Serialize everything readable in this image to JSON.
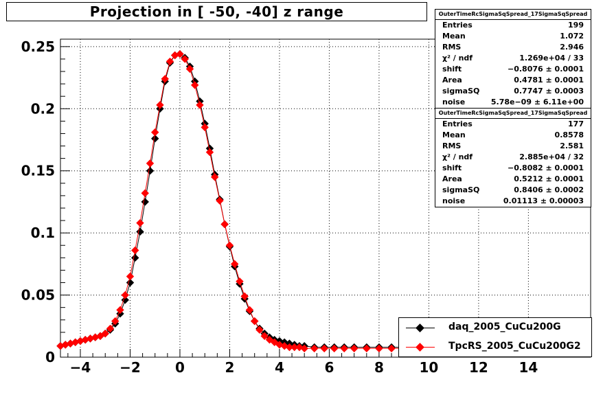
{
  "chart_data": {
    "type": "scatter",
    "title": "Projection in [ -50, -40] z range",
    "xlim": [
      -4.8,
      16.5
    ],
    "ylim": [
      0,
      0.256
    ],
    "x_ticks": [
      "−4",
      "−2",
      "0",
      "2",
      "4",
      "6",
      "8",
      "10",
      "12",
      "14"
    ],
    "y_ticks": [
      "0",
      "0.05",
      "0.1",
      "0.15",
      "0.2",
      "0.25"
    ],
    "grid": true,
    "legend_position": "bottom-right",
    "series": [
      {
        "name": "daq_2005_CuCu200G",
        "color": "#000000",
        "x": [
          -4.8,
          -4.6,
          -4.4,
          -4.2,
          -4.0,
          -3.8,
          -3.6,
          -3.4,
          -3.2,
          -3.0,
          -2.8,
          -2.6,
          -2.4,
          -2.2,
          -2.0,
          -1.8,
          -1.6,
          -1.4,
          -1.2,
          -1.0,
          -0.8,
          -0.6,
          -0.4,
          -0.2,
          0.0,
          0.2,
          0.4,
          0.6,
          0.8,
          1.0,
          1.2,
          1.4,
          1.6,
          1.8,
          2.0,
          2.2,
          2.4,
          2.6,
          2.8,
          3.0,
          3.2,
          3.4,
          3.6,
          3.8,
          4.0,
          4.2,
          4.4,
          4.6,
          4.8,
          5.0,
          5.4,
          5.8,
          6.2,
          6.6,
          7.0,
          7.5,
          8.0,
          8.5,
          9.0
        ],
        "y": [
          0.009,
          0.01,
          0.011,
          0.012,
          0.013,
          0.014,
          0.015,
          0.016,
          0.017,
          0.019,
          0.022,
          0.027,
          0.035,
          0.046,
          0.06,
          0.08,
          0.101,
          0.125,
          0.15,
          0.176,
          0.2,
          0.222,
          0.237,
          0.243,
          0.244,
          0.241,
          0.234,
          0.222,
          0.206,
          0.188,
          0.168,
          0.147,
          0.127,
          0.107,
          0.089,
          0.073,
          0.059,
          0.047,
          0.037,
          0.029,
          0.023,
          0.019,
          0.016,
          0.014,
          0.013,
          0.012,
          0.011,
          0.01,
          0.009,
          0.009,
          0.008,
          0.008,
          0.008,
          0.008,
          0.008,
          0.008,
          0.008,
          0.008,
          0.008
        ]
      },
      {
        "name": "TpcRS_2005_CuCu200G2",
        "color": "#ff0000",
        "x": [
          -4.8,
          -4.6,
          -4.4,
          -4.2,
          -4.0,
          -3.8,
          -3.6,
          -3.4,
          -3.2,
          -3.0,
          -2.8,
          -2.6,
          -2.4,
          -2.2,
          -2.0,
          -1.8,
          -1.6,
          -1.4,
          -1.2,
          -1.0,
          -0.8,
          -0.6,
          -0.4,
          -0.2,
          0.0,
          0.2,
          0.4,
          0.6,
          0.8,
          1.0,
          1.2,
          1.4,
          1.6,
          1.8,
          2.0,
          2.2,
          2.4,
          2.6,
          2.8,
          3.0,
          3.2,
          3.4,
          3.6,
          3.8,
          4.0,
          4.2,
          4.4,
          4.6,
          4.8,
          5.0,
          5.4,
          5.8,
          6.2,
          6.6,
          7.0,
          7.5,
          8.0,
          8.5,
          9.0
        ],
        "y": [
          0.009,
          0.01,
          0.011,
          0.012,
          0.013,
          0.014,
          0.015,
          0.016,
          0.017,
          0.019,
          0.023,
          0.029,
          0.038,
          0.05,
          0.065,
          0.086,
          0.108,
          0.132,
          0.156,
          0.181,
          0.203,
          0.224,
          0.238,
          0.243,
          0.244,
          0.24,
          0.232,
          0.219,
          0.203,
          0.185,
          0.165,
          0.145,
          0.126,
          0.107,
          0.09,
          0.075,
          0.061,
          0.049,
          0.038,
          0.029,
          0.022,
          0.017,
          0.014,
          0.012,
          0.01,
          0.009,
          0.008,
          0.008,
          0.008,
          0.007,
          0.007,
          0.007,
          0.007,
          0.007,
          0.007,
          0.007,
          0.007,
          0.007,
          0.007
        ]
      }
    ]
  },
  "stats_boxes": [
    {
      "header": "OuterTimeRcSigmaSqSpread_17SigmaSqSpread",
      "rows": [
        {
          "label": "Entries",
          "value": "199"
        },
        {
          "label": "Mean",
          "value": "1.072"
        },
        {
          "label": "RMS",
          "value": "2.946"
        },
        {
          "label": "χ² / ndf",
          "value": "1.269e+04 / 33"
        },
        {
          "label": "shift",
          "value": "−0.8076 ± 0.0001"
        },
        {
          "label": "Area",
          "value": "0.4781 ± 0.0001"
        },
        {
          "label": "sigmaSQ",
          "value": "0.7747 ± 0.0003"
        },
        {
          "label": "noise",
          "value": "5.78e−09 ± 6.11e+00"
        }
      ]
    },
    {
      "header": "OuterTimeRcSigmaSqSpread_17SigmaSqSpread",
      "rows": [
        {
          "label": "Entries",
          "value": "177"
        },
        {
          "label": "Mean",
          "value": "0.8578"
        },
        {
          "label": "RMS",
          "value": "2.581"
        },
        {
          "label": "χ² / ndf",
          "value": "2.885e+04 / 32"
        },
        {
          "label": "shift",
          "value": "−0.8082 ± 0.0001"
        },
        {
          "label": "Area",
          "value": "0.5212 ± 0.0001"
        },
        {
          "label": "sigmaSQ",
          "value": "0.8406 ± 0.0002"
        },
        {
          "label": "noise",
          "value": "0.01113 ± 0.00003"
        }
      ]
    }
  ]
}
